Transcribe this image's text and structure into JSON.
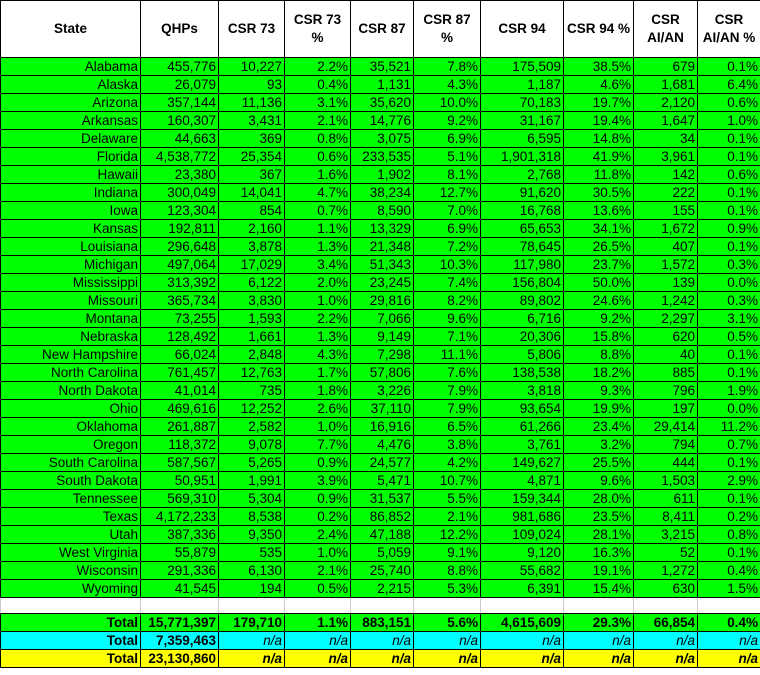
{
  "colors": {
    "data_rows": "#00ff00",
    "total_row_1": "#00ff00",
    "total_row_2": "#00ffff",
    "total_row_3": "#ffff00"
  },
  "headers": [
    "State",
    "QHPs",
    "CSR 73",
    "CSR 73 %",
    "CSR 87",
    "CSR 87 %",
    "CSR 94",
    "CSR 94 %",
    "CSR AI/AN",
    "CSR AI/AN %"
  ],
  "rows": [
    [
      "Alabama",
      "455,776",
      "10,227",
      "2.2%",
      "35,521",
      "7.8%",
      "175,509",
      "38.5%",
      "679",
      "0.1%"
    ],
    [
      "Alaska",
      "26,079",
      "93",
      "0.4%",
      "1,131",
      "4.3%",
      "1,187",
      "4.6%",
      "1,681",
      "6.4%"
    ],
    [
      "Arizona",
      "357,144",
      "11,136",
      "3.1%",
      "35,620",
      "10.0%",
      "70,183",
      "19.7%",
      "2,120",
      "0.6%"
    ],
    [
      "Arkansas",
      "160,307",
      "3,431",
      "2.1%",
      "14,776",
      "9.2%",
      "31,167",
      "19.4%",
      "1,647",
      "1.0%"
    ],
    [
      "Delaware",
      "44,663",
      "369",
      "0.8%",
      "3,075",
      "6.9%",
      "6,595",
      "14.8%",
      "34",
      "0.1%"
    ],
    [
      "Florida",
      "4,538,772",
      "25,354",
      "0.6%",
      "233,535",
      "5.1%",
      "1,901,318",
      "41.9%",
      "3,961",
      "0.1%"
    ],
    [
      "Hawaii",
      "23,380",
      "367",
      "1.6%",
      "1,902",
      "8.1%",
      "2,768",
      "11.8%",
      "142",
      "0.6%"
    ],
    [
      "Indiana",
      "300,049",
      "14,041",
      "4.7%",
      "38,234",
      "12.7%",
      "91,620",
      "30.5%",
      "222",
      "0.1%"
    ],
    [
      "Iowa",
      "123,304",
      "854",
      "0.7%",
      "8,590",
      "7.0%",
      "16,768",
      "13.6%",
      "155",
      "0.1%"
    ],
    [
      "Kansas",
      "192,811",
      "2,160",
      "1.1%",
      "13,329",
      "6.9%",
      "65,653",
      "34.1%",
      "1,672",
      "0.9%"
    ],
    [
      "Louisiana",
      "296,648",
      "3,878",
      "1.3%",
      "21,348",
      "7.2%",
      "78,645",
      "26.5%",
      "407",
      "0.1%"
    ],
    [
      "Michigan",
      "497,064",
      "17,029",
      "3.4%",
      "51,343",
      "10.3%",
      "117,980",
      "23.7%",
      "1,572",
      "0.3%"
    ],
    [
      "Mississippi",
      "313,392",
      "6,122",
      "2.0%",
      "23,245",
      "7.4%",
      "156,804",
      "50.0%",
      "139",
      "0.0%"
    ],
    [
      "Missouri",
      "365,734",
      "3,830",
      "1.0%",
      "29,816",
      "8.2%",
      "89,802",
      "24.6%",
      "1,242",
      "0.3%"
    ],
    [
      "Montana",
      "73,255",
      "1,593",
      "2.2%",
      "7,066",
      "9.6%",
      "6,716",
      "9.2%",
      "2,297",
      "3.1%"
    ],
    [
      "Nebraska",
      "128,492",
      "1,661",
      "1.3%",
      "9,149",
      "7.1%",
      "20,306",
      "15.8%",
      "620",
      "0.5%"
    ],
    [
      "New Hampshire",
      "66,024",
      "2,848",
      "4.3%",
      "7,298",
      "11.1%",
      "5,806",
      "8.8%",
      "40",
      "0.1%"
    ],
    [
      "North Carolina",
      "761,457",
      "12,763",
      "1.7%",
      "57,806",
      "7.6%",
      "138,538",
      "18.2%",
      "885",
      "0.1%"
    ],
    [
      "North Dakota",
      "41,014",
      "735",
      "1.8%",
      "3,226",
      "7.9%",
      "3,818",
      "9.3%",
      "796",
      "1.9%"
    ],
    [
      "Ohio",
      "469,616",
      "12,252",
      "2.6%",
      "37,110",
      "7.9%",
      "93,654",
      "19.9%",
      "197",
      "0.0%"
    ],
    [
      "Oklahoma",
      "261,887",
      "2,582",
      "1.0%",
      "16,916",
      "6.5%",
      "61,266",
      "23.4%",
      "29,414",
      "11.2%"
    ],
    [
      "Oregon",
      "118,372",
      "9,078",
      "7.7%",
      "4,476",
      "3.8%",
      "3,761",
      "3.2%",
      "794",
      "0.7%"
    ],
    [
      "South Carolina",
      "587,567",
      "5,265",
      "0.9%",
      "24,577",
      "4.2%",
      "149,627",
      "25.5%",
      "444",
      "0.1%"
    ],
    [
      "South Dakota",
      "50,951",
      "1,991",
      "3.9%",
      "5,471",
      "10.7%",
      "4,871",
      "9.6%",
      "1,503",
      "2.9%"
    ],
    [
      "Tennessee",
      "569,310",
      "5,304",
      "0.9%",
      "31,537",
      "5.5%",
      "159,344",
      "28.0%",
      "611",
      "0.1%"
    ],
    [
      "Texas",
      "4,172,233",
      "8,538",
      "0.2%",
      "86,852",
      "2.1%",
      "981,686",
      "23.5%",
      "8,411",
      "0.2%"
    ],
    [
      "Utah",
      "387,336",
      "9,350",
      "2.4%",
      "47,188",
      "12.2%",
      "109,024",
      "28.1%",
      "3,215",
      "0.8%"
    ],
    [
      "West Virginia",
      "55,879",
      "535",
      "1.0%",
      "5,059",
      "9.1%",
      "9,120",
      "16.3%",
      "52",
      "0.1%"
    ],
    [
      "Wisconsin",
      "291,336",
      "6,130",
      "2.1%",
      "25,740",
      "8.8%",
      "55,682",
      "19.1%",
      "1,272",
      "0.4%"
    ],
    [
      "Wyoming",
      "41,545",
      "194",
      "0.5%",
      "2,215",
      "5.3%",
      "6,391",
      "15.4%",
      "630",
      "1.5%"
    ]
  ],
  "totals": [
    {
      "style": "green",
      "cells": [
        "Total",
        "15,771,397",
        "179,710",
        "1.1%",
        "883,151",
        "5.6%",
        "4,615,609",
        "29.3%",
        "66,854",
        "0.4%"
      ]
    },
    {
      "style": "cyan",
      "cells": [
        "Total",
        "7,359,463",
        "n/a",
        "n/a",
        "n/a",
        "n/a",
        "n/a",
        "n/a",
        "n/a",
        "n/a"
      ]
    },
    {
      "style": "yellow",
      "cells": [
        "Total",
        "23,130,860",
        "n/a",
        "n/a",
        "n/a",
        "n/a",
        "n/a",
        "n/a",
        "n/a",
        "n/a"
      ]
    }
  ]
}
